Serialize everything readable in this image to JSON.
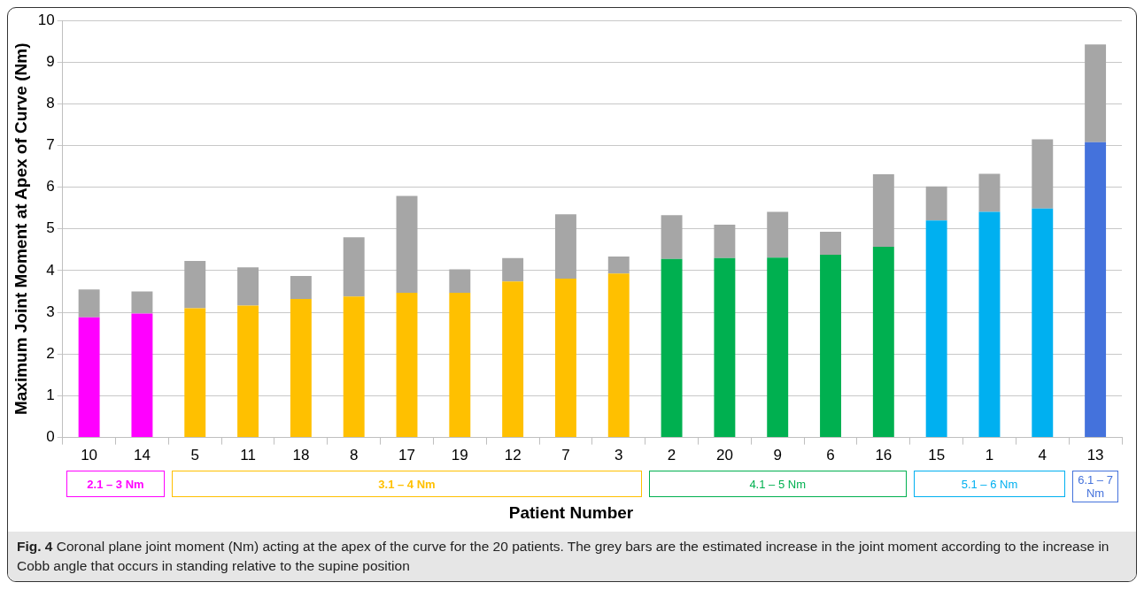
{
  "chart_data": {
    "type": "bar",
    "stacked": true,
    "ylabel": "Maximum Joint Moment at Apex of Curve (Nm)",
    "xlabel": "Patient Number",
    "categories": [
      "10",
      "14",
      "5",
      "11",
      "18",
      "8",
      "17",
      "19",
      "12",
      "7",
      "3",
      "2",
      "20",
      "9",
      "6",
      "16",
      "15",
      "1",
      "4",
      "13"
    ],
    "series": [
      {
        "colors": [
          "#ff00ff",
          "#ff00ff",
          "#ffc000",
          "#ffc000",
          "#ffc000",
          "#ffc000",
          "#ffc000",
          "#ffc000",
          "#ffc000",
          "#ffc000",
          "#ffc000",
          "#00b050",
          "#00b050",
          "#00b050",
          "#00b050",
          "#00b050",
          "#00b0f0",
          "#00b0f0",
          "#00b0f0",
          "#4472dc"
        ],
        "values": [
          2.88,
          2.97,
          3.1,
          3.16,
          3.32,
          3.38,
          3.47,
          3.47,
          3.74,
          3.81,
          3.93,
          4.28,
          4.3,
          4.31,
          4.38,
          4.57,
          5.2,
          5.41,
          5.49,
          7.08
        ]
      },
      {
        "color": "#a6a6a6",
        "values": [
          0.67,
          0.53,
          1.13,
          0.92,
          0.55,
          1.42,
          2.32,
          0.56,
          0.56,
          1.54,
          0.41,
          1.05,
          0.8,
          1.1,
          0.55,
          1.74,
          0.82,
          0.91,
          1.66,
          2.34
        ]
      }
    ],
    "ylim": [
      0,
      10
    ],
    "yticks": [
      0,
      1,
      2,
      3,
      4,
      5,
      6,
      7,
      8,
      9,
      10
    ],
    "grid": "y",
    "legend": false,
    "annotations": [
      "2.1 – 3 Nm",
      "3.1 – 4 Nm",
      "4.1 – 5 Nm",
      "5.1 – 6 Nm",
      "6.1 – 7 Nm",
      "Fig. 4 Coronal plane joint moment (Nm) acting at the apex of the curve for the 20 patients. The grey bars are the estimated increase in the joint moment according to the increase in Cobb angle that occurs in standing relative to the supine position"
    ]
  }
}
